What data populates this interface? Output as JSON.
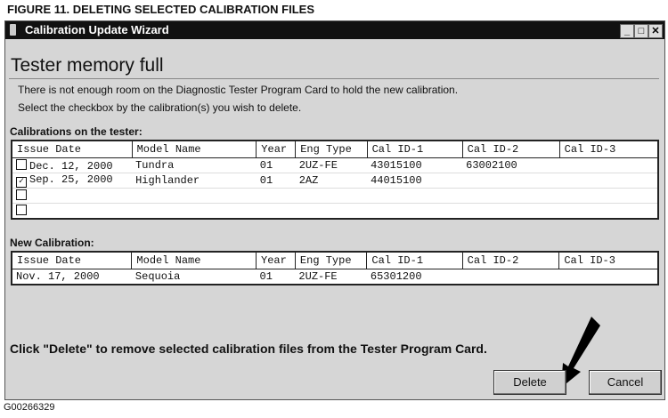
{
  "figure_title": "FIGURE 11.  DELETING SELECTED CALIBRATION FILES",
  "window": {
    "title": "Calibration Update Wizard",
    "icon": "phone-icon"
  },
  "heading": "Tester memory full",
  "messages": [
    "There is not enough room on the Diagnostic Tester Program Card to hold the new calibration.",
    "Select the checkbox by the calibration(s) you wish to delete."
  ],
  "columns": [
    "Issue Date",
    "Model Name",
    "Year",
    "Eng Type",
    "Cal ID-1",
    "Cal ID-2",
    "Cal ID-3"
  ],
  "tester": {
    "label": "Calibrations on the tester:",
    "rows": [
      {
        "checked": false,
        "cells": [
          "Dec. 12, 2000",
          "Tundra",
          "01",
          "2UZ-FE",
          "43015100",
          "63002100",
          ""
        ]
      },
      {
        "checked": true,
        "cells": [
          "Sep. 25, 2000",
          "Highlander",
          "01",
          "2AZ",
          "44015100",
          "",
          ""
        ]
      },
      {
        "checked": false,
        "cells": [
          "",
          "",
          "",
          "",
          "",
          "",
          ""
        ]
      },
      {
        "checked": false,
        "cells": [
          "",
          "",
          "",
          "",
          "",
          "",
          ""
        ]
      }
    ]
  },
  "new_cal": {
    "label": "New Calibration:",
    "rows": [
      {
        "cells": [
          "Nov. 17, 2000",
          "Sequoia",
          "01",
          "2UZ-FE",
          "65301200",
          "",
          ""
        ]
      }
    ]
  },
  "instruction": "Click \"Delete\" to remove selected calibration files from the Tester Program Card.",
  "buttons": {
    "delete": "Delete",
    "cancel": "Cancel"
  },
  "code": "G00266329"
}
